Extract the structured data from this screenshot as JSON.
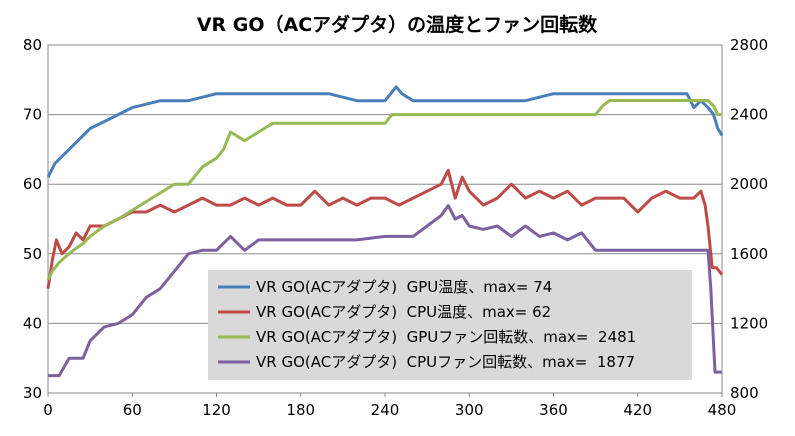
{
  "chart_data": {
    "type": "line",
    "title": "VR GO（ACアダプタ）の温度とファン回転数",
    "xlabel": "",
    "ylabel": "",
    "x_ticks": [
      "0",
      "60",
      "120",
      "180",
      "240",
      "300",
      "360",
      "420",
      "480"
    ],
    "xlim": [
      0,
      480
    ],
    "y_left": {
      "lim": [
        30,
        80
      ],
      "ticks": [
        "30",
        "40",
        "50",
        "60",
        "70",
        "80"
      ]
    },
    "y_right": {
      "lim": [
        800,
        2800
      ],
      "ticks": [
        "800",
        "1200",
        "1600",
        "2000",
        "2400",
        "2800"
      ]
    },
    "grid": "horizontal",
    "legend_position": "bottom-center",
    "series": [
      {
        "name": "VR GO(ACアダプタ)  GPU温度、max= 74",
        "axis": "left",
        "color": "#4a7ebb",
        "x": [
          0,
          5,
          10,
          15,
          20,
          25,
          30,
          40,
          50,
          60,
          70,
          80,
          90,
          100,
          110,
          120,
          130,
          140,
          150,
          160,
          170,
          180,
          200,
          220,
          240,
          248,
          252,
          260,
          280,
          300,
          320,
          340,
          360,
          380,
          400,
          420,
          440,
          455,
          460,
          465,
          470,
          474,
          477,
          480
        ],
        "y": [
          61,
          63,
          64,
          65,
          66,
          67,
          68,
          69,
          70,
          71,
          71.5,
          72,
          72,
          72,
          72.5,
          73,
          73,
          73,
          73,
          73,
          73,
          73,
          73,
          72,
          72,
          74,
          73,
          72,
          72,
          72,
          72,
          72,
          73,
          73,
          73,
          73,
          73,
          73,
          71,
          72,
          71,
          70,
          68,
          67
        ]
      },
      {
        "name": "VR GO(ACアダプタ)  CPU温度、max= 62",
        "axis": "left",
        "color": "#be4b48",
        "x": [
          0,
          3,
          6,
          10,
          15,
          20,
          25,
          30,
          40,
          50,
          60,
          70,
          80,
          90,
          100,
          110,
          120,
          130,
          140,
          150,
          160,
          170,
          180,
          190,
          200,
          210,
          220,
          230,
          240,
          250,
          260,
          270,
          280,
          285,
          290,
          295,
          300,
          310,
          320,
          330,
          340,
          350,
          360,
          370,
          380,
          390,
          400,
          410,
          420,
          430,
          440,
          450,
          460,
          465,
          468,
          470,
          473,
          476,
          480
        ],
        "y": [
          45,
          49,
          52,
          50,
          51,
          53,
          52,
          54,
          54,
          55,
          56,
          56,
          57,
          56,
          57,
          58,
          57,
          57,
          58,
          57,
          58,
          57,
          57,
          59,
          57,
          58,
          57,
          58,
          58,
          57,
          58,
          59,
          60,
          62,
          58,
          61,
          59,
          57,
          58,
          60,
          58,
          59,
          58,
          59,
          57,
          58,
          58,
          58,
          56,
          58,
          59,
          58,
          58,
          59,
          57,
          54,
          48,
          48,
          47
        ]
      },
      {
        "name": "VR GO(ACアダプタ)  GPUファン回転数、max=  2481",
        "axis": "right",
        "color": "#98b954",
        "x": [
          0,
          3,
          8,
          12,
          18,
          25,
          30,
          40,
          50,
          60,
          70,
          80,
          90,
          100,
          110,
          120,
          125,
          130,
          140,
          150,
          160,
          170,
          180,
          200,
          220,
          240,
          245,
          260,
          280,
          300,
          320,
          340,
          360,
          380,
          390,
          395,
          400,
          420,
          440,
          460,
          470,
          474,
          477,
          480
        ],
        "y": [
          1450,
          1500,
          1550,
          1580,
          1620,
          1660,
          1700,
          1760,
          1800,
          1850,
          1900,
          1950,
          2000,
          2000,
          2100,
          2150,
          2200,
          2300,
          2250,
          2300,
          2350,
          2350,
          2350,
          2350,
          2350,
          2350,
          2400,
          2400,
          2400,
          2400,
          2400,
          2400,
          2400,
          2400,
          2400,
          2450,
          2481,
          2481,
          2481,
          2481,
          2481,
          2450,
          2400,
          2400
        ]
      },
      {
        "name": "VR GO(ACアダプタ)  CPUファン回転数、max=  1877",
        "axis": "right",
        "color": "#7d60a0",
        "x": [
          0,
          8,
          15,
          25,
          30,
          40,
          50,
          60,
          70,
          80,
          90,
          100,
          110,
          120,
          130,
          140,
          150,
          160,
          180,
          200,
          220,
          240,
          250,
          260,
          270,
          280,
          285,
          290,
          295,
          300,
          310,
          320,
          330,
          340,
          350,
          360,
          370,
          380,
          390,
          400,
          420,
          440,
          460,
          470,
          472,
          475,
          480
        ],
        "y": [
          900,
          900,
          1000,
          1000,
          1100,
          1180,
          1200,
          1250,
          1350,
          1400,
          1500,
          1600,
          1620,
          1620,
          1700,
          1620,
          1680,
          1680,
          1680,
          1680,
          1680,
          1700,
          1700,
          1700,
          1760,
          1820,
          1877,
          1800,
          1820,
          1760,
          1740,
          1760,
          1700,
          1760,
          1700,
          1720,
          1680,
          1720,
          1620,
          1620,
          1620,
          1620,
          1620,
          1620,
          1400,
          920,
          920
        ]
      }
    ]
  }
}
